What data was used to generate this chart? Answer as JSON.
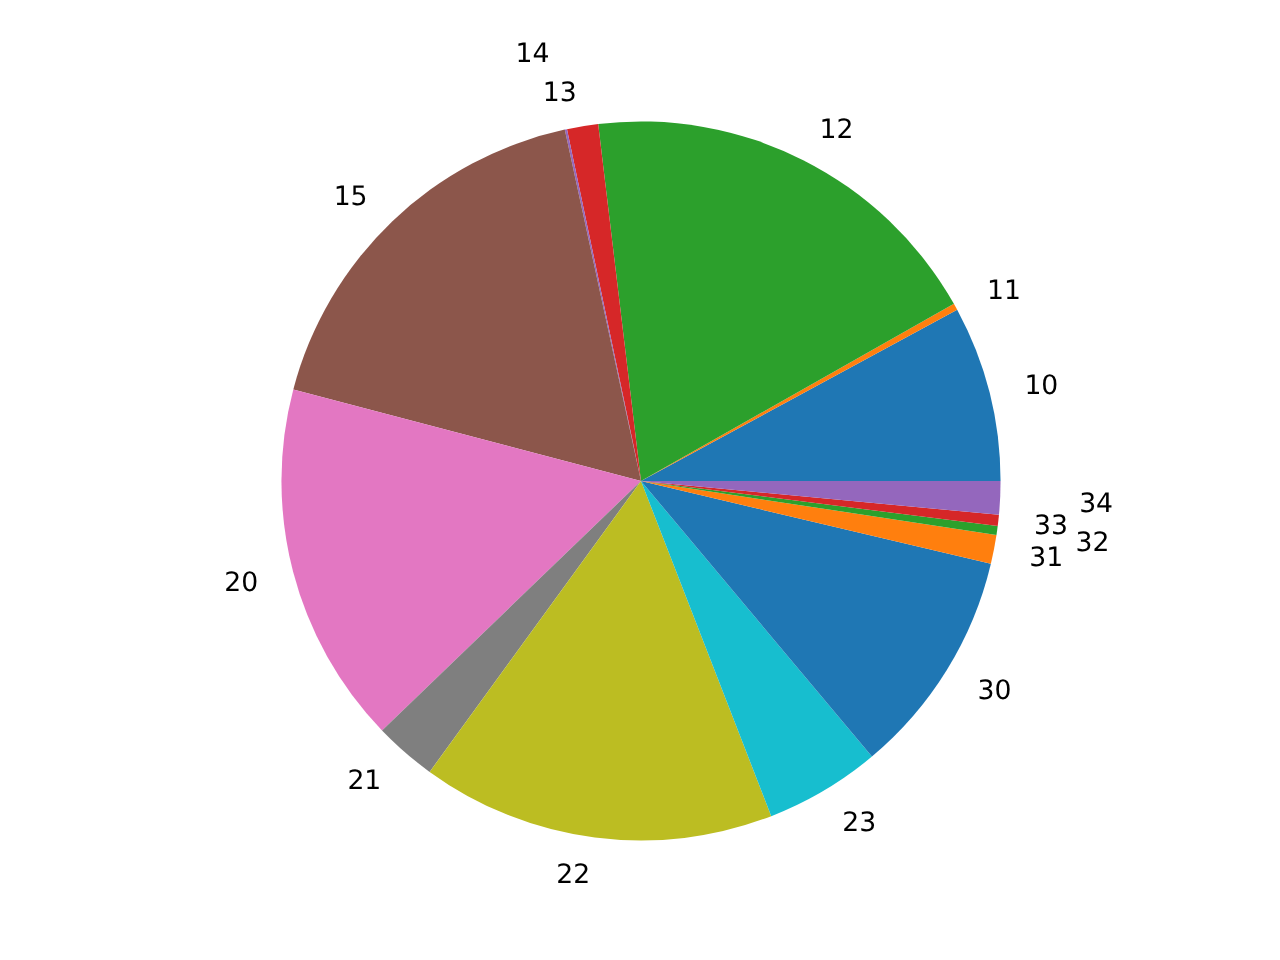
{
  "chart_data": {
    "type": "pie",
    "categories": [
      "10",
      "11",
      "12",
      "13",
      "14",
      "15",
      "20",
      "21",
      "22",
      "23",
      "30",
      "31",
      "32",
      "33",
      "34"
    ],
    "values": [
      7.9,
      0.3,
      18.7,
      1.4,
      0.1,
      17.5,
      16.3,
      2.8,
      15.9,
      5.2,
      10.2,
      1.3,
      0.4,
      0.5,
      1.5
    ],
    "colors": [
      "#1f77b4",
      "#ff7f0e",
      "#2ca02c",
      "#d62728",
      "#9467bd",
      "#8c564b",
      "#e377c2",
      "#7f7f7f",
      "#bcbd22",
      "#17becf",
      "#1f77b4",
      "#ff7f0e",
      "#2ca02c",
      "#d62728",
      "#9467bd"
    ],
    "legend": false
  }
}
